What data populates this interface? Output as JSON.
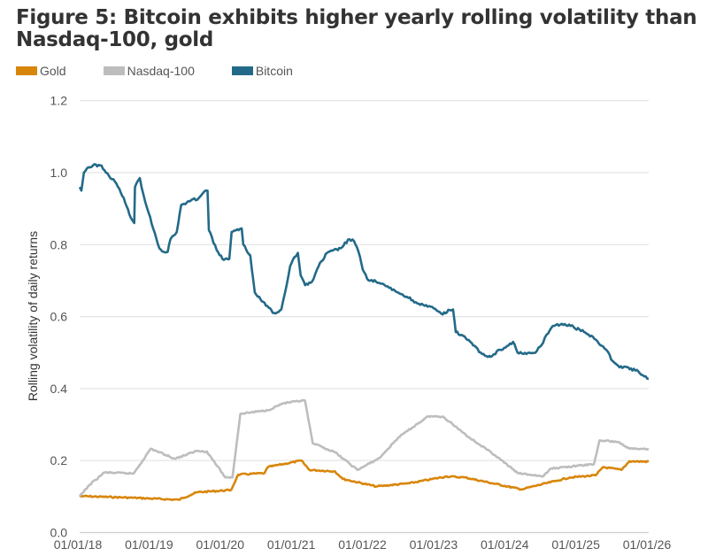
{
  "title": "Figure 5: Bitcoin exhibits higher yearly rolling volatility than Nasdaq-100, gold",
  "chart_data": {
    "type": "line",
    "title": "Figure 5: Bitcoin exhibits higher yearly rolling volatility than Nasdaq-100, gold",
    "xlabel": "",
    "ylabel": "Rolling volatility of daily returns",
    "ylim": [
      0,
      1.2
    ],
    "xlim": [
      "2018-01-01",
      "2026-01-01"
    ],
    "yticks": [
      "0.0",
      "0.2",
      "0.4",
      "0.6",
      "0.8",
      "1.0",
      "1.2"
    ],
    "xticks": [
      "01/01/18",
      "01/01/19",
      "01/01/20",
      "01/01/21",
      "01/01/22",
      "01/01/23",
      "01/01/24",
      "01/01/25",
      "01/01/26"
    ],
    "grid": "horizontal",
    "legend": "top-left",
    "series": [
      {
        "name": "Gold",
        "color": "#d8860b",
        "points": [
          [
            "2018-01-01",
            0.1
          ],
          [
            "2018-01-15",
            0.101
          ],
          [
            "2018-09-16",
            0.097
          ],
          [
            "2019-05-23",
            0.091
          ],
          [
            "2019-08-27",
            0.112
          ],
          [
            "2020-02-17",
            0.118
          ],
          [
            "2020-03-25",
            0.161
          ],
          [
            "2020-08-07",
            0.165
          ],
          [
            "2020-08-25",
            0.182
          ],
          [
            "2021-02-13",
            0.2
          ],
          [
            "2021-03-26",
            0.174
          ],
          [
            "2021-08-04",
            0.17
          ],
          [
            "2021-09-13",
            0.149
          ],
          [
            "2022-03-04",
            0.128
          ],
          [
            "2022-08-22",
            0.137
          ],
          [
            "2023-02-28",
            0.156
          ],
          [
            "2023-06-03",
            0.153
          ],
          [
            "2024-03-17",
            0.12
          ],
          [
            "2024-09-24",
            0.145
          ],
          [
            "2024-11-21",
            0.153
          ],
          [
            "2025-04-05",
            0.159
          ],
          [
            "2025-05-11",
            0.182
          ],
          [
            "2025-08-14",
            0.174
          ],
          [
            "2025-09-24",
            0.198
          ],
          [
            "2026-01-01",
            0.197
          ]
        ]
      },
      {
        "name": "Nasdaq-100",
        "color": "#bdbdbd",
        "points": [
          [
            "2018-01-01",
            0.1
          ],
          [
            "2018-02-20",
            0.132
          ],
          [
            "2018-05-08",
            0.167
          ],
          [
            "2018-10-05",
            0.164
          ],
          [
            "2019-01-01",
            0.233
          ],
          [
            "2019-05-05",
            0.205
          ],
          [
            "2019-08-27",
            0.227
          ],
          [
            "2019-10-16",
            0.225
          ],
          [
            "2020-01-19",
            0.153
          ],
          [
            "2020-02-24",
            0.153
          ],
          [
            "2020-04-05",
            0.33
          ],
          [
            "2020-08-25",
            0.34
          ],
          [
            "2020-11-10",
            0.359
          ],
          [
            "2021-03-03",
            0.367
          ],
          [
            "2021-04-12",
            0.248
          ],
          [
            "2021-08-04",
            0.223
          ],
          [
            "2021-11-28",
            0.174
          ],
          [
            "2022-03-21",
            0.207
          ],
          [
            "2022-06-25",
            0.264
          ],
          [
            "2022-11-25",
            0.323
          ],
          [
            "2023-02-10",
            0.322
          ],
          [
            "2023-06-25",
            0.264
          ],
          [
            "2023-11-03",
            0.215
          ],
          [
            "2024-02-28",
            0.165
          ],
          [
            "2024-07-08",
            0.156
          ],
          [
            "2024-08-18",
            0.178
          ],
          [
            "2025-03-26",
            0.19
          ],
          [
            "2025-04-24",
            0.256
          ],
          [
            "2025-07-27",
            0.252
          ],
          [
            "2025-09-24",
            0.233
          ],
          [
            "2026-01-01",
            0.233
          ]
        ]
      },
      {
        "name": "Bitcoin",
        "color": "#236a88",
        "points": [
          [
            "2018-01-01",
            0.96
          ],
          [
            "2018-01-10",
            0.95
          ],
          [
            "2018-01-23",
            1.0
          ],
          [
            "2018-02-15",
            1.015
          ],
          [
            "2018-03-10",
            1.02
          ],
          [
            "2018-04-23",
            1.02
          ],
          [
            "2018-05-16",
            1.0
          ],
          [
            "2018-07-01",
            0.975
          ],
          [
            "2018-08-15",
            0.93
          ],
          [
            "2018-09-20",
            0.875
          ],
          [
            "2018-10-08",
            0.86
          ],
          [
            "2018-10-12",
            0.96
          ],
          [
            "2018-11-06",
            0.985
          ],
          [
            "2018-11-24",
            0.94
          ],
          [
            "2018-12-20",
            0.89
          ],
          [
            "2019-01-23",
            0.83
          ],
          [
            "2019-02-14",
            0.79
          ],
          [
            "2019-03-08",
            0.78
          ],
          [
            "2019-03-29",
            0.78
          ],
          [
            "2019-04-12",
            0.815
          ],
          [
            "2019-05-14",
            0.835
          ],
          [
            "2019-06-06",
            0.91
          ],
          [
            "2019-07-20",
            0.92
          ],
          [
            "2019-09-05",
            0.93
          ],
          [
            "2019-10-08",
            0.95
          ],
          [
            "2019-10-19",
            0.95
          ],
          [
            "2019-10-26",
            0.84
          ],
          [
            "2019-12-05",
            0.785
          ],
          [
            "2020-01-04",
            0.76
          ],
          [
            "2020-02-08",
            0.76
          ],
          [
            "2020-02-20",
            0.835
          ],
          [
            "2020-03-27",
            0.84
          ],
          [
            "2020-04-12",
            0.845
          ],
          [
            "2020-04-20",
            0.8
          ],
          [
            "2020-05-26",
            0.77
          ],
          [
            "2020-06-18",
            0.667
          ],
          [
            "2020-07-04",
            0.655
          ],
          [
            "2020-08-21",
            0.63
          ],
          [
            "2020-09-26",
            0.61
          ],
          [
            "2020-11-02",
            0.62
          ],
          [
            "2020-11-21",
            0.667
          ],
          [
            "2020-12-17",
            0.74
          ],
          [
            "2021-01-08",
            0.765
          ],
          [
            "2021-01-26",
            0.777
          ],
          [
            "2021-02-09",
            0.715
          ],
          [
            "2021-03-04",
            0.687
          ],
          [
            "2021-04-08",
            0.697
          ],
          [
            "2021-05-12",
            0.74
          ],
          [
            "2021-06-25",
            0.777
          ],
          [
            "2021-09-02",
            0.79
          ],
          [
            "2021-10-17",
            0.815
          ],
          [
            "2021-11-10",
            0.81
          ],
          [
            "2021-12-03",
            0.78
          ],
          [
            "2021-12-25",
            0.73
          ],
          [
            "2022-01-16",
            0.705
          ],
          [
            "2022-03-03",
            0.697
          ],
          [
            "2022-05-09",
            0.68
          ],
          [
            "2022-06-24",
            0.667
          ],
          [
            "2022-08-08",
            0.655
          ],
          [
            "2022-09-23",
            0.64
          ],
          [
            "2022-11-07",
            0.63
          ],
          [
            "2022-12-24",
            0.623
          ],
          [
            "2023-02-08",
            0.606
          ],
          [
            "2023-03-16",
            0.618
          ],
          [
            "2023-04-02",
            0.62
          ],
          [
            "2023-04-16",
            0.557
          ],
          [
            "2023-05-31",
            0.545
          ],
          [
            "2023-07-14",
            0.52
          ],
          [
            "2023-08-29",
            0.496
          ],
          [
            "2023-10-13",
            0.488
          ],
          [
            "2023-11-28",
            0.508
          ],
          [
            "2024-01-12",
            0.52
          ],
          [
            "2024-02-04",
            0.53
          ],
          [
            "2024-02-27",
            0.5
          ],
          [
            "2024-04-13",
            0.496
          ],
          [
            "2024-05-29",
            0.5
          ],
          [
            "2024-06-29",
            0.52
          ],
          [
            "2024-07-26",
            0.55
          ],
          [
            "2024-08-26",
            0.574
          ],
          [
            "2024-10-12",
            0.58
          ],
          [
            "2024-11-26",
            0.574
          ],
          [
            "2025-01-11",
            0.564
          ],
          [
            "2025-02-26",
            0.55
          ],
          [
            "2025-04-12",
            0.532
          ],
          [
            "2025-05-28",
            0.508
          ],
          [
            "2025-07-01",
            0.476
          ],
          [
            "2025-08-04",
            0.459
          ],
          [
            "2025-09-18",
            0.459
          ],
          [
            "2025-10-24",
            0.45
          ],
          [
            "2025-11-10",
            0.447
          ],
          [
            "2025-12-09",
            0.434
          ],
          [
            "2026-01-01",
            0.427
          ]
        ]
      }
    ]
  }
}
